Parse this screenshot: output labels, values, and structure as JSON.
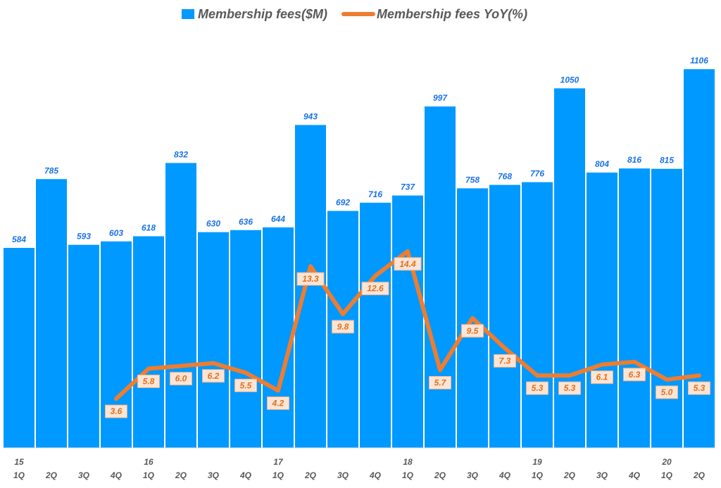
{
  "chart_data": {
    "type": "bar",
    "title": "",
    "legend": {
      "position": "top",
      "entries": [
        "Membership fees($M)",
        "Membership fees YoY(%)"
      ]
    },
    "categories": [
      "1Q",
      "2Q",
      "3Q",
      "4Q",
      "1Q",
      "2Q",
      "3Q",
      "4Q",
      "1Q",
      "2Q",
      "3Q",
      "4Q",
      "1Q",
      "2Q",
      "3Q",
      "4Q",
      "1Q",
      "2Q",
      "3Q",
      "4Q",
      "1Q",
      "2Q"
    ],
    "years": [
      "15",
      "",
      "",
      "",
      "16",
      "",
      "",
      "",
      "17",
      "",
      "",
      "",
      "18",
      "",
      "",
      "",
      "19",
      "",
      "",
      "",
      "20",
      ""
    ],
    "series": [
      {
        "name": "Membership fees($M)",
        "type": "bar",
        "color": "#0099ff",
        "values": [
          584,
          785,
          593,
          603,
          618,
          832,
          630,
          636,
          644,
          943,
          692,
          716,
          737,
          997,
          758,
          768,
          776,
          1050,
          804,
          816,
          815,
          1106
        ]
      },
      {
        "name": "Membership fees YoY(%)",
        "type": "line",
        "color": "#ed7d31",
        "values": [
          null,
          null,
          null,
          3.6,
          5.8,
          6.0,
          6.2,
          5.5,
          4.2,
          13.3,
          9.8,
          12.6,
          14.4,
          5.7,
          9.5,
          7.3,
          5.3,
          5.3,
          6.1,
          6.3,
          5.0,
          5.3
        ],
        "labels": [
          "",
          "",
          "",
          "3.6",
          "5.8",
          "6.0",
          "6.2",
          "5.5",
          "4.2",
          "13.3",
          "9.8",
          "12.6",
          "14.4",
          "5.7",
          "9.5",
          "7.3",
          "5.3",
          "5.3",
          "6.1",
          "6.3",
          "5.0",
          "5.3"
        ]
      }
    ],
    "ylim_bar": [
      0,
      1308
    ],
    "ylim_line": [
      0,
      32.8
    ],
    "grid": false
  }
}
